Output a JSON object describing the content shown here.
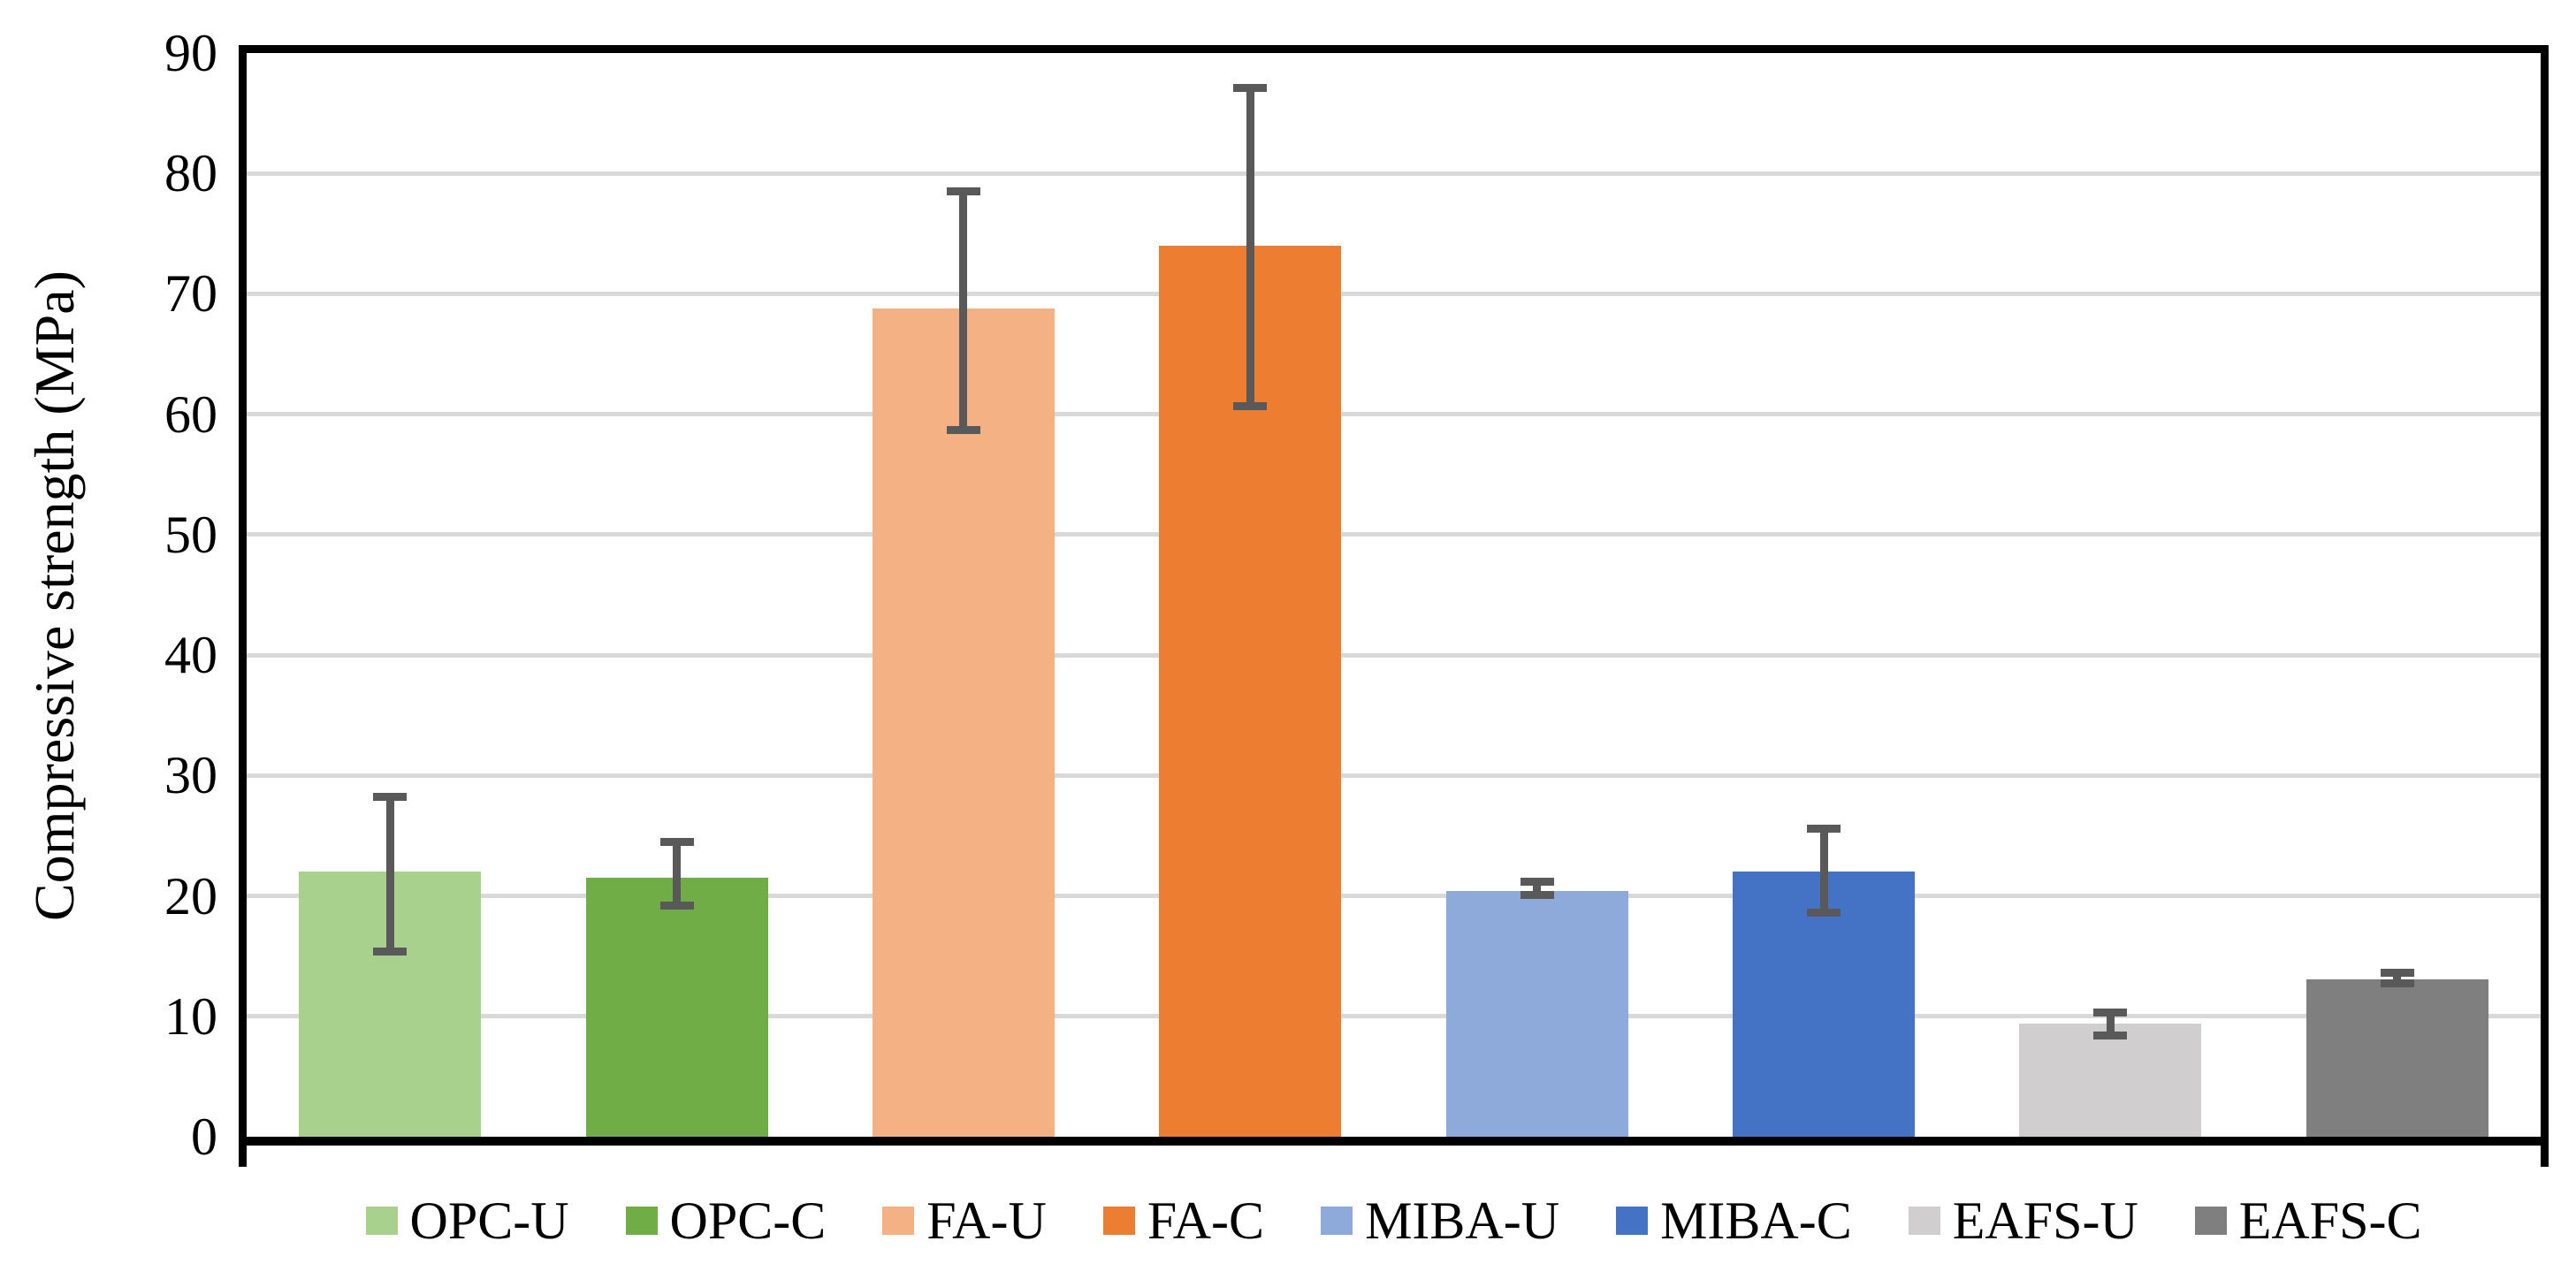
{
  "chart_data": {
    "type": "bar",
    "title": "",
    "xlabel": "",
    "ylabel": "Compressive strength (MPa)",
    "ylim": [
      0,
      90
    ],
    "yticks": [
      0,
      10,
      20,
      30,
      40,
      50,
      60,
      70,
      80,
      90
    ],
    "grid": "horizontal-major",
    "legend_position": "bottom",
    "categories": [
      "OPC-U",
      "OPC-C",
      "FA-U",
      "FA-C",
      "MIBA-U",
      "MIBA-C",
      "EAFS-U",
      "EAFS-C"
    ],
    "series": [
      {
        "name": "Compressive strength",
        "values": [
          22.0,
          21.5,
          68.8,
          74.0,
          20.4,
          22.0,
          9.4,
          13.1
        ],
        "bar_colors": [
          "#A9D18E",
          "#70AD47",
          "#F4B183",
          "#ED7D31",
          "#8EAADB",
          "#4472C4",
          "#D0CECE",
          "#7F7F7F"
        ],
        "error_bars": {
          "upper": [
            28.2,
            24.5,
            78.5,
            87.1,
            21.2,
            25.6,
            10.3,
            13.6
          ],
          "lower": [
            15.4,
            19.2,
            58.7,
            60.7,
            20.1,
            18.6,
            8.4,
            12.7
          ],
          "color": "#595959"
        }
      }
    ],
    "legend": [
      "OPC-U",
      "OPC-C",
      "FA-U",
      "FA-C",
      "MIBA-U",
      "MIBA-C",
      "EAFS-U",
      "EAFS-C"
    ]
  },
  "colors": {
    "background": "#FFFFFF",
    "axis_frame": "#000000",
    "gridline": "#D9D9D9",
    "tick_text": "#000000",
    "error_bar": "#595959"
  }
}
